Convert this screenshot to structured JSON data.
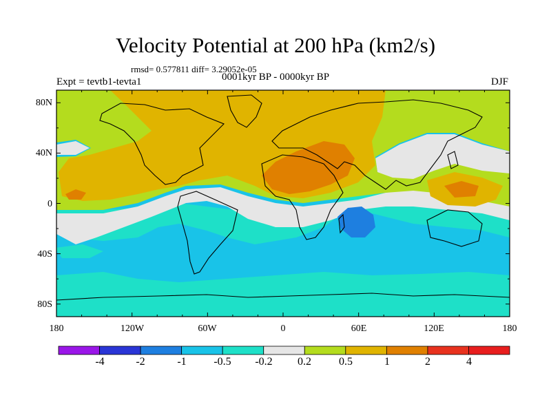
{
  "plot": {
    "title": "Velocity Potential at 200 hPa (km2/s)",
    "stats": "rmsd= 0.577811 diff= 3.29052e-05",
    "period": "0001kyr BP - 0000kyr BP",
    "experiment": "Expt = tevtb1-tevta1",
    "season": "DJF"
  },
  "axes": {
    "y_ticks": [
      "80N",
      "40N",
      "0",
      "40S",
      "80S"
    ],
    "x_ticks": [
      "180",
      "120W",
      "60W",
      "0",
      "60E",
      "120E",
      "180"
    ]
  },
  "colorbar": {
    "labels": [
      "-4",
      "-2",
      "-1",
      "-0.5",
      "-0.2",
      "0.2",
      "0.5",
      "1",
      "2",
      "4"
    ],
    "levels": [
      -4,
      -2,
      -1,
      -0.5,
      -0.2,
      0.2,
      0.5,
      1,
      2,
      4
    ],
    "colors": [
      "#9a16e8",
      "#2a35d6",
      "#1e7fe0",
      "#19c3e8",
      "#1ee0c8",
      "#e6e6e6",
      "#b4dc1e",
      "#e0b400",
      "#e08000",
      "#e8321e",
      "#e81e1e"
    ]
  },
  "field_colors": {
    "positive_medium": "#e0b400",
    "positive_strong": "#e08000",
    "positive_weak": "#b4dc1e",
    "neutral": "#e6e6e6",
    "negative_weak": "#1ee0c8",
    "negative_medium": "#19c3e8",
    "negative_strong": "#1e7fe0"
  },
  "colorbar_colors": [
    "#9a16e8",
    "#2a35d6",
    "#1e7fe0",
    "#19c3e8",
    "#1ee0c8",
    "#e6e6e6",
    "#b4dc1e",
    "#e0b400",
    "#e08000",
    "#e8321e",
    "#e81e1e"
  ]
}
